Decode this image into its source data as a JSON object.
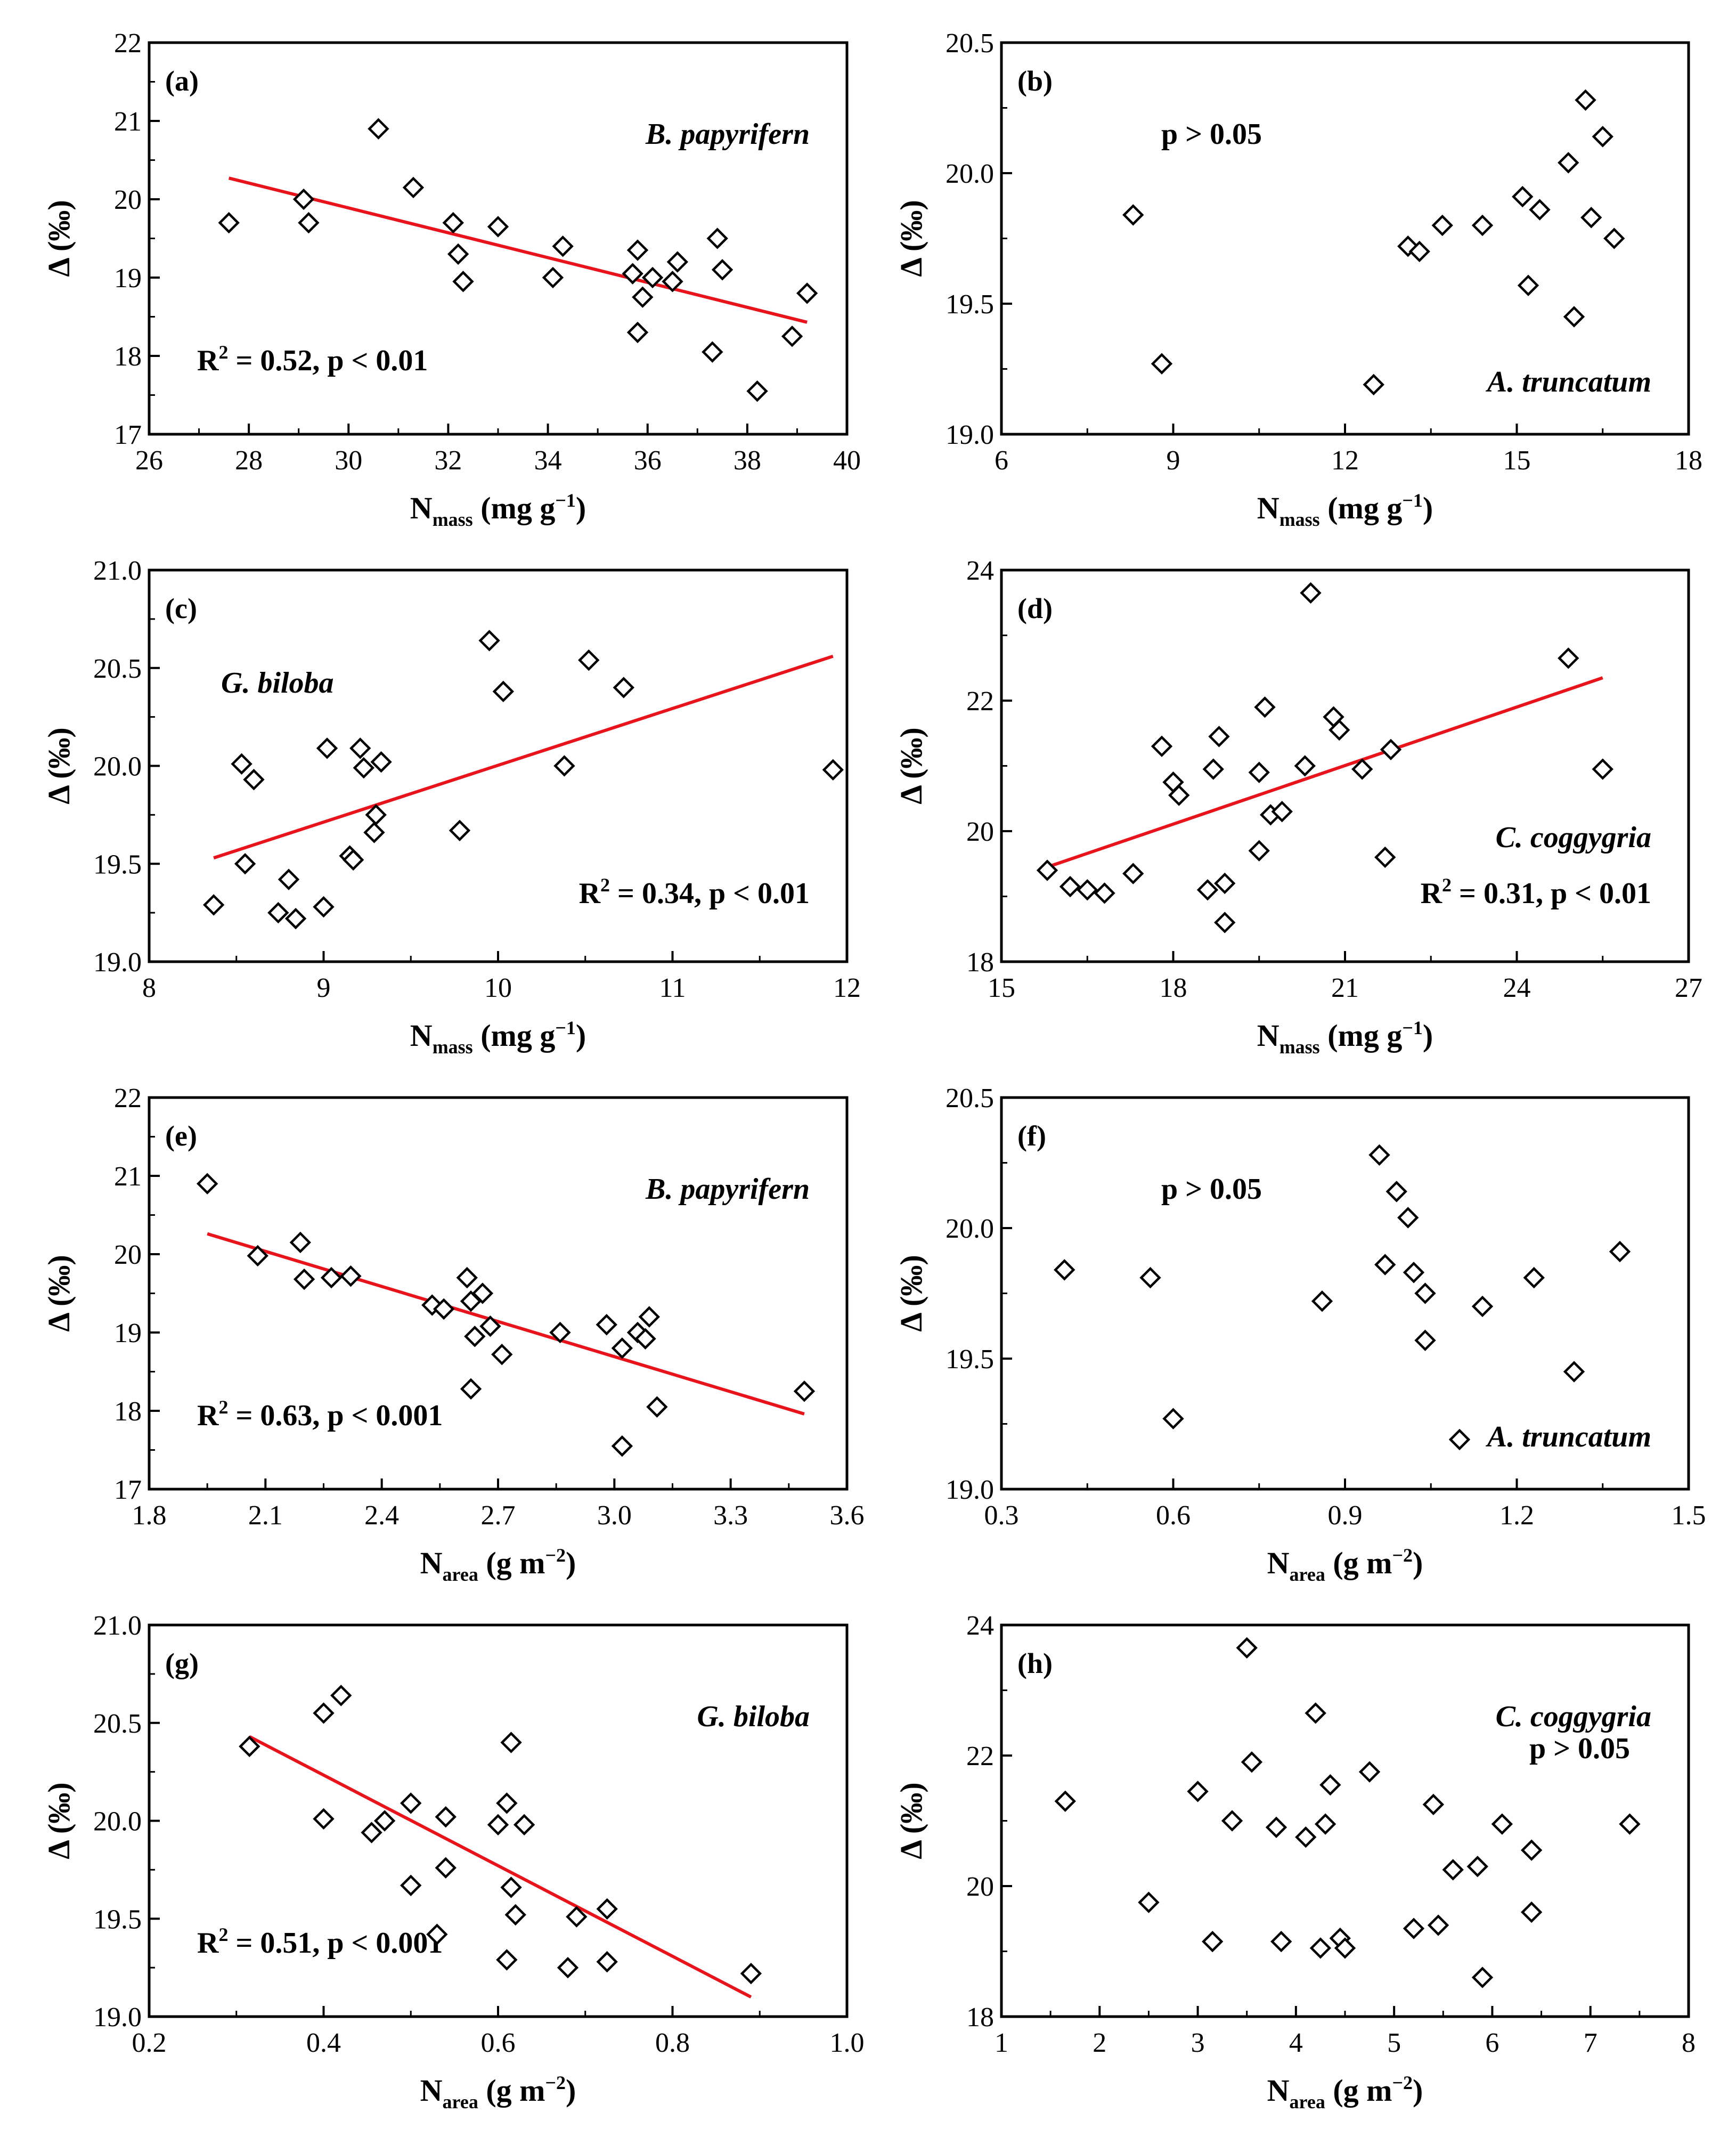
{
  "chart_data": [
    {
      "id": "a",
      "type": "scatter",
      "panel_label": "(a)",
      "species": "B. papyrifern",
      "stat_base": "R",
      "stat_sup": "2",
      "stat_rest": " = 0.52, p < 0.01",
      "x_base": "N",
      "x_sub": "mass",
      "x_unit": " (mg g",
      "x_unit_sup": "−1",
      "x_close": ")",
      "ylabel": "Δ (‰)",
      "xlim": [
        26,
        40
      ],
      "xticks": [
        26,
        28,
        30,
        32,
        34,
        36,
        38,
        40
      ],
      "xtick_labels": [
        "26",
        "28",
        "30",
        "32",
        "34",
        "36",
        "38",
        "40"
      ],
      "ylim": [
        17,
        22
      ],
      "yticks": [
        17,
        18,
        19,
        20,
        21,
        22
      ],
      "ytick_labels": [
        "17",
        "18",
        "19",
        "20",
        "21",
        "22"
      ],
      "x": [
        27.6,
        29.1,
        29.2,
        30.6,
        31.3,
        32.1,
        32.2,
        32.3,
        33.0,
        34.1,
        34.3,
        35.7,
        35.8,
        35.9,
        35.8,
        36.1,
        36.6,
        36.5,
        37.4,
        37.5,
        37.3,
        38.2,
        38.9,
        39.2
      ],
      "y": [
        19.7,
        20.0,
        19.7,
        20.9,
        20.15,
        19.7,
        19.3,
        18.95,
        19.65,
        19.0,
        19.4,
        19.05,
        19.35,
        18.75,
        18.3,
        19.0,
        19.2,
        18.95,
        19.5,
        19.1,
        18.05,
        17.55,
        18.25,
        18.8
      ],
      "fit": [
        [
          27.6,
          20.27
        ],
        [
          39.2,
          18.43
        ]
      ],
      "species_pos": "top-right",
      "stat_pos": "bottom-left"
    },
    {
      "id": "b",
      "type": "scatter",
      "panel_label": "(b)",
      "species": "A. truncatum",
      "stat_base": "p > 0.05",
      "stat_sup": "",
      "stat_rest": "",
      "x_base": "N",
      "x_sub": "mass",
      "x_unit": " (mg g",
      "x_unit_sup": "−1",
      "x_close": ")",
      "ylabel": "Δ (‰)",
      "xlim": [
        6,
        18
      ],
      "xticks": [
        6,
        9,
        12,
        15,
        18
      ],
      "xtick_labels": [
        "6",
        "9",
        "12",
        "15",
        "18"
      ],
      "ylim": [
        19.0,
        20.5
      ],
      "yticks": [
        19.0,
        19.5,
        20.0,
        20.5
      ],
      "ytick_labels": [
        "19.0",
        "19.5",
        "20.0",
        "20.5"
      ],
      "x": [
        8.3,
        8.8,
        12.5,
        13.1,
        13.3,
        13.7,
        14.4,
        15.1,
        15.2,
        15.4,
        15.9,
        16.0,
        16.2,
        16.3,
        16.5,
        16.7
      ],
      "y": [
        19.84,
        19.27,
        19.19,
        19.72,
        19.7,
        19.8,
        19.8,
        19.91,
        19.57,
        19.86,
        20.04,
        19.45,
        20.28,
        19.83,
        20.14,
        19.75
      ],
      "fit": null,
      "species_pos": "bottom-right",
      "stat_pos": "top-left"
    },
    {
      "id": "c",
      "type": "scatter",
      "panel_label": "(c)",
      "species": "G. biloba",
      "stat_base": "R",
      "stat_sup": "2",
      "stat_rest": " = 0.34, p < 0.01",
      "x_base": "N",
      "x_sub": "mass",
      "x_unit": " (mg g",
      "x_unit_sup": "−1",
      "x_close": ")",
      "ylabel": "Δ (‰)",
      "xlim": [
        8,
        12
      ],
      "xticks": [
        8,
        9,
        10,
        11,
        12
      ],
      "xtick_labels": [
        "8",
        "9",
        "10",
        "11",
        "12"
      ],
      "ylim": [
        19.0,
        21.0
      ],
      "yticks": [
        19.0,
        19.5,
        20.0,
        20.5,
        21.0
      ],
      "ytick_labels": [
        "19.0",
        "19.5",
        "20.0",
        "20.5",
        "21.0"
      ],
      "x": [
        8.37,
        8.53,
        8.55,
        8.6,
        8.74,
        8.8,
        8.84,
        9.0,
        9.02,
        9.15,
        9.17,
        9.21,
        9.23,
        9.29,
        9.3,
        9.33,
        9.78,
        9.95,
        10.03,
        10.38,
        10.52,
        10.72,
        11.92
      ],
      "y": [
        19.29,
        20.01,
        19.5,
        19.93,
        19.25,
        19.42,
        19.22,
        19.28,
        20.09,
        19.54,
        19.52,
        20.09,
        19.99,
        19.66,
        19.75,
        20.02,
        19.67,
        20.64,
        20.38,
        20.0,
        20.54,
        20.4,
        19.98
      ],
      "fit": [
        [
          8.37,
          19.53
        ],
        [
          11.92,
          20.56
        ]
      ],
      "species_pos": "top-left",
      "stat_pos": "bottom-right"
    },
    {
      "id": "d",
      "type": "scatter",
      "panel_label": "(d)",
      "species": "C. coggygria",
      "stat_base": "R",
      "stat_sup": "2",
      "stat_rest": " = 0.31, p < 0.01",
      "x_base": "N",
      "x_sub": "mass",
      "x_unit": " (mg g",
      "x_unit_sup": "−1",
      "x_close": ")",
      "ylabel": "Δ (‰)",
      "xlim": [
        15,
        27
      ],
      "xticks": [
        15,
        18,
        21,
        24,
        27
      ],
      "xtick_labels": [
        "15",
        "18",
        "21",
        "24",
        "27"
      ],
      "ylim": [
        18,
        24
      ],
      "yticks": [
        18,
        20,
        22,
        24
      ],
      "ytick_labels": [
        "18",
        "20",
        "22",
        "24"
      ],
      "x": [
        15.8,
        16.2,
        16.5,
        16.8,
        17.3,
        17.8,
        18.0,
        18.1,
        18.6,
        18.7,
        18.8,
        18.9,
        18.9,
        19.5,
        19.5,
        19.6,
        19.7,
        19.9,
        20.3,
        20.4,
        20.8,
        20.9,
        21.3,
        21.7,
        21.8,
        24.9,
        25.5
      ],
      "y": [
        19.4,
        19.15,
        19.1,
        19.05,
        19.35,
        21.3,
        20.75,
        20.55,
        19.1,
        20.95,
        21.45,
        19.2,
        18.6,
        19.7,
        20.9,
        21.9,
        20.25,
        20.3,
        21.0,
        23.65,
        21.75,
        21.55,
        20.95,
        19.6,
        21.25,
        22.65,
        20.95
      ],
      "fit": [
        [
          15.8,
          19.45
        ],
        [
          25.5,
          22.35
        ]
      ],
      "species_pos": "bottom-right",
      "stat_pos": "bottom-right"
    },
    {
      "id": "e",
      "type": "scatter",
      "panel_label": "(e)",
      "species": "B. papyrifern",
      "stat_base": "R",
      "stat_sup": "2",
      "stat_rest": " = 0.63, p < 0.001",
      "x_base": "N",
      "x_sub": "area",
      "x_unit": " (g m",
      "x_unit_sup": "−2",
      "x_close": ")",
      "ylabel": "Δ (‰)",
      "xlim": [
        1.8,
        3.6
      ],
      "xticks": [
        1.8,
        2.1,
        2.4,
        2.7,
        3.0,
        3.3,
        3.6
      ],
      "xtick_labels": [
        "1.8",
        "2.1",
        "2.4",
        "2.7",
        "3.0",
        "3.3",
        "3.6"
      ],
      "ylim": [
        17,
        22
      ],
      "yticks": [
        17,
        18,
        19,
        20,
        21,
        22
      ],
      "ytick_labels": [
        "17",
        "18",
        "19",
        "20",
        "21",
        "22"
      ],
      "x": [
        1.95,
        2.08,
        2.19,
        2.2,
        2.27,
        2.32,
        2.53,
        2.56,
        2.62,
        2.63,
        2.63,
        2.66,
        2.64,
        2.68,
        2.71,
        2.86,
        2.98,
        3.02,
        3.06,
        3.08,
        3.09,
        3.11,
        3.02,
        3.49
      ],
      "y": [
        20.9,
        19.98,
        20.15,
        19.68,
        19.7,
        19.72,
        19.35,
        19.3,
        19.7,
        19.4,
        18.28,
        19.5,
        18.95,
        19.08,
        18.72,
        19.0,
        19.1,
        18.8,
        19.0,
        18.92,
        19.2,
        18.05,
        17.55,
        18.25
      ],
      "fit": [
        [
          1.95,
          20.26
        ],
        [
          3.49,
          17.96
        ]
      ],
      "species_pos": "top-right",
      "stat_pos": "bottom-left"
    },
    {
      "id": "f",
      "type": "scatter",
      "panel_label": "(f)",
      "species": "A. truncatum",
      "stat_base": "p > 0.05",
      "stat_sup": "",
      "stat_rest": "",
      "x_base": "N",
      "x_sub": "area",
      "x_unit": " (g m",
      "x_unit_sup": "−2",
      "x_close": ")",
      "ylabel": "Δ (‰)",
      "xlim": [
        0.3,
        1.5
      ],
      "xticks": [
        0.3,
        0.6,
        0.9,
        1.2,
        1.5
      ],
      "xtick_labels": [
        "0.3",
        "0.6",
        "0.9",
        "1.2",
        "1.5"
      ],
      "ylim": [
        19.0,
        20.5
      ],
      "yticks": [
        19.0,
        19.5,
        20.0,
        20.5
      ],
      "ytick_labels": [
        "19.0",
        "19.5",
        "20.0",
        "20.5"
      ],
      "x": [
        0.41,
        0.56,
        0.6,
        0.86,
        0.96,
        0.97,
        0.99,
        1.01,
        1.02,
        1.04,
        1.04,
        1.1,
        1.14,
        1.23,
        1.3,
        1.38
      ],
      "y": [
        19.84,
        19.81,
        19.27,
        19.72,
        20.28,
        19.86,
        20.14,
        20.04,
        19.83,
        19.75,
        19.57,
        19.19,
        19.7,
        19.81,
        19.45,
        19.91
      ],
      "fit": null,
      "species_pos": "bottom-right",
      "stat_pos": "top-left"
    },
    {
      "id": "g",
      "type": "scatter",
      "panel_label": "(g)",
      "species": "G. biloba",
      "stat_base": "R",
      "stat_sup": "2",
      "stat_rest": " = 0.51, p < 0.001",
      "x_base": "N",
      "x_sub": "area",
      "x_unit": " (g m",
      "x_unit_sup": "−2",
      "x_close": ")",
      "ylabel": "Δ (‰)",
      "xlim": [
        0.2,
        1.0
      ],
      "xticks": [
        0.2,
        0.4,
        0.6,
        0.8,
        1.0
      ],
      "xtick_labels": [
        "0.2",
        "0.4",
        "0.6",
        "0.8",
        "1.0"
      ],
      "ylim": [
        19.0,
        21.0
      ],
      "yticks": [
        19.0,
        19.5,
        20.0,
        20.5,
        21.0
      ],
      "ytick_labels": [
        "19.0",
        "19.5",
        "20.0",
        "20.5",
        "21.0"
      ],
      "x": [
        0.315,
        0.4,
        0.4,
        0.42,
        0.455,
        0.47,
        0.5,
        0.5,
        0.53,
        0.54,
        0.54,
        0.6,
        0.61,
        0.61,
        0.615,
        0.615,
        0.62,
        0.63,
        0.68,
        0.69,
        0.725,
        0.725,
        0.89
      ],
      "y": [
        20.38,
        20.55,
        20.01,
        20.64,
        19.94,
        20.0,
        20.09,
        19.67,
        19.42,
        20.02,
        19.76,
        19.98,
        20.09,
        19.29,
        20.4,
        19.66,
        19.52,
        19.98,
        19.25,
        19.51,
        19.55,
        19.28,
        19.22
      ],
      "fit": [
        [
          0.315,
          20.43
        ],
        [
          0.89,
          19.1
        ]
      ],
      "species_pos": "top-right",
      "stat_pos": "bottom-left"
    },
    {
      "id": "h",
      "type": "scatter",
      "panel_label": "(h)",
      "species": "C. coggygria",
      "stat_base": "p > 0.05",
      "stat_sup": "",
      "stat_rest": "",
      "x_base": "N",
      "x_sub": "area",
      "x_unit": " (g m",
      "x_unit_sup": "−2",
      "x_close": ")",
      "ylabel": "Δ (‰)",
      "xlim": [
        1,
        8
      ],
      "xticks": [
        1,
        2,
        3,
        4,
        5,
        6,
        7,
        8
      ],
      "xtick_labels": [
        "1",
        "2",
        "3",
        "4",
        "5",
        "6",
        "7",
        "8"
      ],
      "ylim": [
        18,
        24
      ],
      "yticks": [
        18,
        20,
        22,
        24
      ],
      "ytick_labels": [
        "18",
        "20",
        "22",
        "24"
      ],
      "x": [
        1.65,
        2.5,
        3.0,
        3.15,
        3.35,
        3.5,
        3.55,
        3.8,
        3.85,
        4.1,
        4.2,
        4.25,
        4.3,
        4.35,
        4.45,
        4.5,
        4.75,
        5.2,
        5.4,
        5.45,
        5.6,
        5.85,
        5.9,
        6.1,
        6.4,
        6.4,
        7.4
      ],
      "y": [
        21.3,
        19.75,
        21.45,
        19.15,
        21.0,
        23.65,
        21.9,
        20.9,
        19.15,
        20.75,
        22.65,
        19.05,
        20.95,
        21.55,
        19.2,
        19.05,
        21.75,
        19.35,
        21.25,
        19.4,
        20.25,
        20.3,
        18.6,
        20.95,
        20.55,
        19.6,
        20.95
      ],
      "fit": null,
      "species_pos": "top-right",
      "stat_pos": "top-right"
    }
  ]
}
